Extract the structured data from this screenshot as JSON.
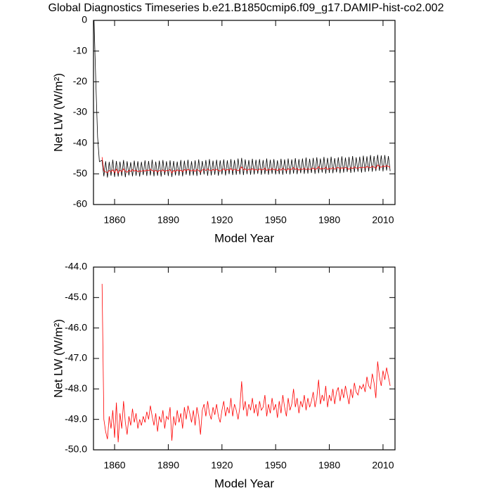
{
  "chart_data": [
    {
      "type": "line",
      "title": "Global Diagnostics Timeseries b.e21.B1850cmip6.f09_g17.DAMIP-hist-co2.002",
      "xlabel": "Model Year",
      "ylabel": "Net LW (W/m²)",
      "xlim": [
        1848.2,
        2016.7
      ],
      "xticks": [
        1860,
        1890,
        1920,
        1950,
        1980,
        2010
      ],
      "ylim": [
        -60,
        0
      ],
      "yticks": [
        -60,
        -50,
        -40,
        -30,
        -20,
        -10,
        0
      ],
      "series": [
        {
          "color": "#000000",
          "x": [
            1848.5,
            1849.5,
            1850.5,
            1851.5,
            1853,
            1854,
            1855,
            1856,
            1857,
            1858,
            1859,
            1860,
            1861,
            1862,
            1863,
            1864,
            1865,
            1866,
            1867,
            1868,
            1869,
            1870,
            1871,
            1872,
            1873,
            1874,
            1875,
            1876,
            1877,
            1878,
            1879,
            1880,
            1881,
            1882,
            1883,
            1884,
            1885,
            1886,
            1887,
            1888,
            1889,
            1890,
            1891,
            1892,
            1893,
            1894,
            1895,
            1896,
            1897,
            1898,
            1899,
            1900,
            1901,
            1902,
            1903,
            1904,
            1905,
            1906,
            1907,
            1908,
            1909,
            1910,
            1911,
            1912,
            1913,
            1914,
            1915,
            1916,
            1917,
            1918,
            1919,
            1920,
            1921,
            1922,
            1923,
            1924,
            1925,
            1926,
            1927,
            1928,
            1929,
            1930,
            1931,
            1932,
            1933,
            1934,
            1935,
            1936,
            1937,
            1938,
            1939,
            1940,
            1941,
            1942,
            1943,
            1944,
            1945,
            1946,
            1947,
            1948,
            1949,
            1950,
            1951,
            1952,
            1953,
            1954,
            1955,
            1956,
            1957,
            1958,
            1959,
            1960,
            1961,
            1962,
            1963,
            1964,
            1965,
            1966,
            1967,
            1968,
            1969,
            1970,
            1971,
            1972,
            1973,
            1974,
            1975,
            1976,
            1977,
            1978,
            1979,
            1980,
            1981,
            1982,
            1983,
            1984,
            1985,
            1986,
            1987,
            1988,
            1989,
            1990,
            1991,
            1992,
            1993,
            1994,
            1995,
            1996,
            1997,
            1998,
            1999,
            2000,
            2001,
            2002,
            2003,
            2004,
            2005,
            2006,
            2007,
            2008,
            2009,
            2010,
            2011,
            2012,
            2013,
            2014
          ],
          "values": [
            0,
            -20,
            -38,
            -46,
            -45.6,
            -50.8,
            -45.9,
            -51.2,
            -46.1,
            -50.6,
            -45.4,
            -51.0,
            -45.8,
            -50.9,
            -46.0,
            -50.7,
            -45.5,
            -51.1,
            -45.9,
            -50.5,
            -46.2,
            -50.8,
            -45.7,
            -50.6,
            -45.9,
            -50.9,
            -46.1,
            -50.4,
            -45.6,
            -50.7,
            -45.8,
            -50.5,
            -45.4,
            -50.8,
            -46.0,
            -50.6,
            -45.7,
            -50.9,
            -45.5,
            -50.4,
            -45.9,
            -50.7,
            -45.6,
            -51.0,
            -45.8,
            -50.5,
            -46.0,
            -50.6,
            -45.5,
            -50.8,
            -45.7,
            -50.3,
            -45.4,
            -50.6,
            -45.9,
            -50.5,
            -45.6,
            -50.7,
            -45.3,
            -50.4,
            -45.8,
            -50.2,
            -45.5,
            -50.6,
            -45.2,
            -50.5,
            -45.7,
            -50.3,
            -45.4,
            -50.6,
            -45.6,
            -50.2,
            -45.3,
            -50.5,
            -45.6,
            -50.1,
            -45.2,
            -50.4,
            -45.5,
            -50.3,
            -45.0,
            -50.2,
            -44.8,
            -50.4,
            -45.3,
            -50.1,
            -45.5,
            -50.3,
            -45.1,
            -50.2,
            -45.4,
            -50.0,
            -45.2,
            -50.3,
            -45.5,
            -50.1,
            -45.0,
            -50.3,
            -45.4,
            -50.0,
            -45.2,
            -50.2,
            -45.6,
            -50.1,
            -45.1,
            -50.3,
            -45.3,
            -50.0,
            -45.0,
            -50.2,
            -45.3,
            -49.9,
            -44.9,
            -50.1,
            -45.2,
            -49.8,
            -45.0,
            -50.0,
            -44.7,
            -49.9,
            -45.1,
            -49.7,
            -44.8,
            -50.0,
            -44.6,
            -49.8,
            -45.0,
            -49.6,
            -44.5,
            -49.9,
            -44.8,
            -49.7,
            -44.4,
            -49.8,
            -44.9,
            -49.5,
            -44.6,
            -49.8,
            -44.3,
            -49.6,
            -44.7,
            -49.4,
            -44.5,
            -49.7,
            -44.2,
            -49.5,
            -44.6,
            -49.3,
            -44.4,
            -49.6,
            -44.1,
            -49.4,
            -44.3,
            -49.2,
            -43.9,
            -49.3,
            -44.2,
            -49.1,
            -43.8,
            -49.0,
            -44.0,
            -49.2,
            -43.9,
            -48.9,
            -44.2,
            -49.1
          ]
        },
        {
          "color": "#ff0000",
          "x": [
            1853,
            1854,
            1855,
            1856,
            1857,
            1858,
            1859,
            1860,
            1861,
            1862,
            1863,
            1864,
            1865,
            1866,
            1867,
            1868,
            1869,
            1870,
            1871,
            1872,
            1873,
            1874,
            1875,
            1876,
            1877,
            1878,
            1879,
            1880,
            1881,
            1882,
            1883,
            1884,
            1885,
            1886,
            1887,
            1888,
            1889,
            1890,
            1891,
            1892,
            1893,
            1894,
            1895,
            1896,
            1897,
            1898,
            1899,
            1900,
            1901,
            1902,
            1903,
            1904,
            1905,
            1906,
            1907,
            1908,
            1909,
            1910,
            1911,
            1912,
            1913,
            1914,
            1915,
            1916,
            1917,
            1918,
            1919,
            1920,
            1921,
            1922,
            1923,
            1924,
            1925,
            1926,
            1927,
            1928,
            1929,
            1930,
            1931,
            1932,
            1933,
            1934,
            1935,
            1936,
            1937,
            1938,
            1939,
            1940,
            1941,
            1942,
            1943,
            1944,
            1945,
            1946,
            1947,
            1948,
            1949,
            1950,
            1951,
            1952,
            1953,
            1954,
            1955,
            1956,
            1957,
            1958,
            1959,
            1960,
            1961,
            1962,
            1963,
            1964,
            1965,
            1966,
            1967,
            1968,
            1969,
            1970,
            1971,
            1972,
            1973,
            1974,
            1975,
            1976,
            1977,
            1978,
            1979,
            1980,
            1981,
            1982,
            1983,
            1984,
            1985,
            1986,
            1987,
            1988,
            1989,
            1990,
            1991,
            1992,
            1993,
            1994,
            1995,
            1996,
            1997,
            1998,
            1999,
            2000,
            2001,
            2002,
            2003,
            2004,
            2005,
            2006,
            2007,
            2008,
            2009,
            2010,
            2011,
            2012,
            2013,
            2014
          ],
          "values": [
            -44.55,
            -49.0,
            -49.4,
            -49.65,
            -48.9,
            -49.3,
            -48.7,
            -49.6,
            -48.45,
            -49.75,
            -48.8,
            -49.3,
            -48.4,
            -49.1,
            -49.5,
            -48.9,
            -49.2,
            -48.65,
            -49.1,
            -48.8,
            -49.3,
            -49.0,
            -49.2,
            -48.9,
            -49.1,
            -48.75,
            -49.0,
            -48.55,
            -48.9,
            -49.2,
            -48.8,
            -49.4,
            -48.9,
            -49.1,
            -48.7,
            -49.3,
            -48.9,
            -49.0,
            -48.6,
            -49.7,
            -48.9,
            -49.2,
            -48.7,
            -49.1,
            -48.8,
            -49.3,
            -48.6,
            -49.0,
            -48.55,
            -48.8,
            -49.1,
            -48.7,
            -49.2,
            -48.6,
            -48.9,
            -49.5,
            -48.7,
            -48.5,
            -48.9,
            -48.4,
            -48.8,
            -49.0,
            -48.6,
            -48.85,
            -48.5,
            -48.9,
            -49.1,
            -48.7,
            -48.4,
            -48.9,
            -48.6,
            -48.8,
            -48.3,
            -48.9,
            -48.5,
            -48.7,
            -49.0,
            -48.6,
            -47.75,
            -48.7,
            -48.4,
            -48.9,
            -48.5,
            -48.7,
            -48.3,
            -48.8,
            -48.5,
            -48.9,
            -48.4,
            -48.7,
            -48.6,
            -48.2,
            -48.9,
            -48.5,
            -48.8,
            -48.3,
            -48.7,
            -48.5,
            -48.95,
            -48.4,
            -48.8,
            -48.2,
            -48.6,
            -48.9,
            -48.3,
            -48.7,
            -48.5,
            -48.0,
            -48.6,
            -48.3,
            -48.8,
            -48.4,
            -48.6,
            -48.2,
            -48.7,
            -48.3,
            -48.6,
            -48.4,
            -48.1,
            -48.6,
            -48.3,
            -47.7,
            -48.5,
            -48.2,
            -48.4,
            -47.9,
            -48.6,
            -48.2,
            -48.4,
            -48.0,
            -48.5,
            -48.1,
            -47.95,
            -48.4,
            -48.0,
            -48.3,
            -47.9,
            -48.2,
            -48.5,
            -48.0,
            -48.3,
            -47.8,
            -48.1,
            -48.2,
            -47.9,
            -48.0,
            -47.85,
            -48.1,
            -47.6,
            -47.9,
            -48.0,
            -47.5,
            -47.8,
            -48.3,
            -47.1,
            -47.6,
            -47.9,
            -47.4,
            -47.7,
            -47.3,
            -47.6,
            -47.9
          ]
        }
      ]
    },
    {
      "type": "line",
      "xlabel": "Model Year",
      "ylabel": "Net LW (W/m²)",
      "xlim": [
        1848.2,
        2016.7
      ],
      "xticks": [
        1860,
        1890,
        1920,
        1950,
        1980,
        2010
      ],
      "ylim": [
        -50,
        -44
      ],
      "yticks": [
        {
          "value": -50,
          "label": "-50.0"
        },
        {
          "value": -49,
          "label": "-49.0"
        },
        {
          "value": -48,
          "label": "-48.0"
        },
        {
          "value": -47,
          "label": "-47.0"
        },
        {
          "value": -46,
          "label": "-46.0"
        },
        {
          "value": -45,
          "label": "-45.0"
        },
        {
          "value": -44,
          "label": "-44.0"
        }
      ],
      "series": [
        {
          "color": "#ff0000",
          "x": [
            1853,
            1854,
            1855,
            1856,
            1857,
            1858,
            1859,
            1860,
            1861,
            1862,
            1863,
            1864,
            1865,
            1866,
            1867,
            1868,
            1869,
            1870,
            1871,
            1872,
            1873,
            1874,
            1875,
            1876,
            1877,
            1878,
            1879,
            1880,
            1881,
            1882,
            1883,
            1884,
            1885,
            1886,
            1887,
            1888,
            1889,
            1890,
            1891,
            1892,
            1893,
            1894,
            1895,
            1896,
            1897,
            1898,
            1899,
            1900,
            1901,
            1902,
            1903,
            1904,
            1905,
            1906,
            1907,
            1908,
            1909,
            1910,
            1911,
            1912,
            1913,
            1914,
            1915,
            1916,
            1917,
            1918,
            1919,
            1920,
            1921,
            1922,
            1923,
            1924,
            1925,
            1926,
            1927,
            1928,
            1929,
            1930,
            1931,
            1932,
            1933,
            1934,
            1935,
            1936,
            1937,
            1938,
            1939,
            1940,
            1941,
            1942,
            1943,
            1944,
            1945,
            1946,
            1947,
            1948,
            1949,
            1950,
            1951,
            1952,
            1953,
            1954,
            1955,
            1956,
            1957,
            1958,
            1959,
            1960,
            1961,
            1962,
            1963,
            1964,
            1965,
            1966,
            1967,
            1968,
            1969,
            1970,
            1971,
            1972,
            1973,
            1974,
            1975,
            1976,
            1977,
            1978,
            1979,
            1980,
            1981,
            1982,
            1983,
            1984,
            1985,
            1986,
            1987,
            1988,
            1989,
            1990,
            1991,
            1992,
            1993,
            1994,
            1995,
            1996,
            1997,
            1998,
            1999,
            2000,
            2001,
            2002,
            2003,
            2004,
            2005,
            2006,
            2007,
            2008,
            2009,
            2010,
            2011,
            2012,
            2013,
            2014
          ],
          "values": [
            -44.55,
            -49.0,
            -49.4,
            -49.65,
            -48.9,
            -49.3,
            -48.7,
            -49.6,
            -48.45,
            -49.75,
            -48.8,
            -49.3,
            -48.4,
            -49.1,
            -49.5,
            -48.9,
            -49.2,
            -48.65,
            -49.1,
            -48.8,
            -49.3,
            -49.0,
            -49.2,
            -48.9,
            -49.1,
            -48.75,
            -49.0,
            -48.55,
            -48.9,
            -49.2,
            -48.8,
            -49.4,
            -48.9,
            -49.1,
            -48.7,
            -49.3,
            -48.9,
            -49.0,
            -48.6,
            -49.7,
            -48.9,
            -49.2,
            -48.7,
            -49.1,
            -48.8,
            -49.3,
            -48.6,
            -49.0,
            -48.55,
            -48.8,
            -49.1,
            -48.7,
            -49.2,
            -48.6,
            -48.9,
            -49.5,
            -48.7,
            -48.5,
            -48.9,
            -48.4,
            -48.8,
            -49.0,
            -48.6,
            -48.85,
            -48.5,
            -48.9,
            -49.1,
            -48.7,
            -48.4,
            -48.9,
            -48.6,
            -48.8,
            -48.3,
            -48.9,
            -48.5,
            -48.7,
            -49.0,
            -48.6,
            -47.75,
            -48.7,
            -48.4,
            -48.9,
            -48.5,
            -48.7,
            -48.3,
            -48.8,
            -48.5,
            -48.9,
            -48.4,
            -48.7,
            -48.6,
            -48.2,
            -48.9,
            -48.5,
            -48.8,
            -48.3,
            -48.7,
            -48.5,
            -48.95,
            -48.4,
            -48.8,
            -48.2,
            -48.6,
            -48.9,
            -48.3,
            -48.7,
            -48.5,
            -48.0,
            -48.6,
            -48.3,
            -48.8,
            -48.4,
            -48.6,
            -48.2,
            -48.7,
            -48.3,
            -48.6,
            -48.4,
            -48.1,
            -48.6,
            -48.3,
            -47.7,
            -48.5,
            -48.2,
            -48.4,
            -47.9,
            -48.6,
            -48.2,
            -48.4,
            -48.0,
            -48.5,
            -48.1,
            -47.95,
            -48.4,
            -48.0,
            -48.3,
            -47.9,
            -48.2,
            -48.5,
            -48.0,
            -48.3,
            -47.8,
            -48.1,
            -48.2,
            -47.9,
            -48.0,
            -47.85,
            -48.1,
            -47.6,
            -47.9,
            -48.0,
            -47.5,
            -47.8,
            -48.3,
            -47.1,
            -47.6,
            -47.9,
            -47.4,
            -47.7,
            -47.3,
            -47.6,
            -47.9
          ]
        }
      ]
    }
  ]
}
